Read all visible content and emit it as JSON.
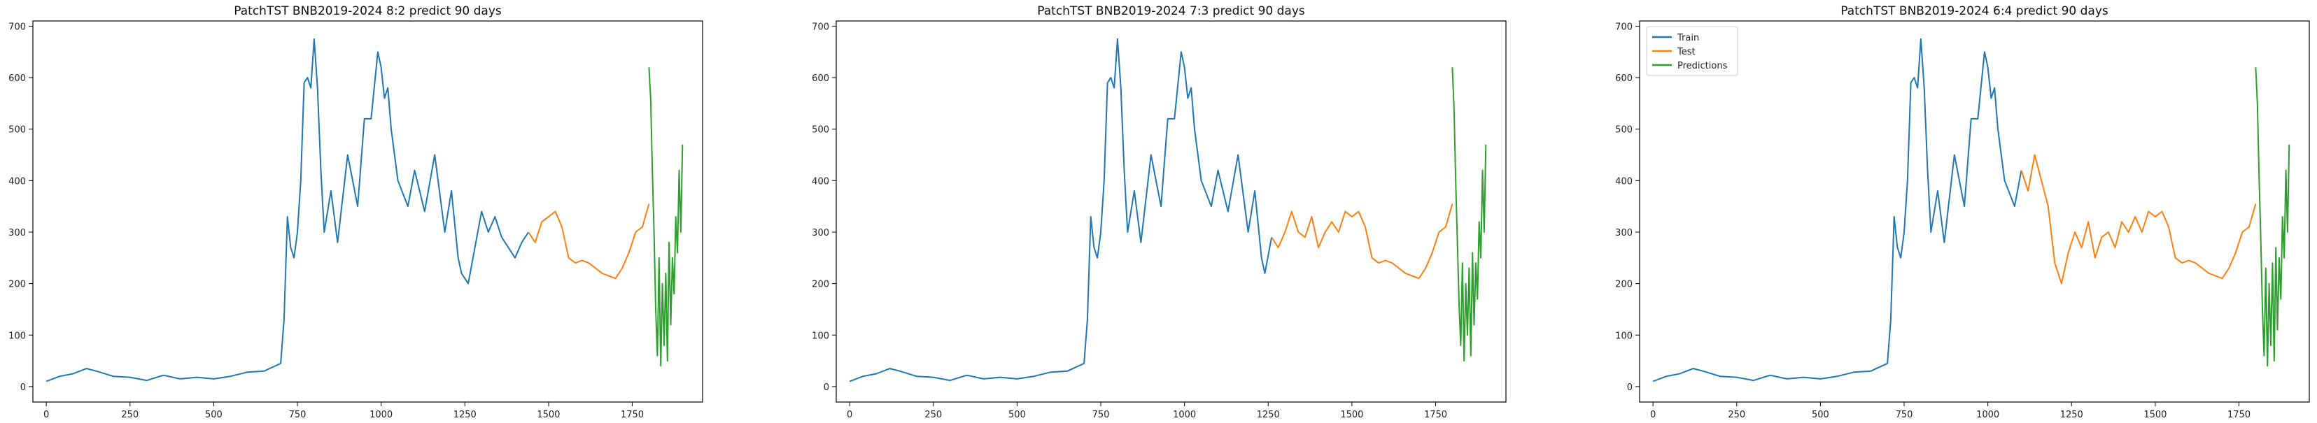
{
  "colors": {
    "train": "#1f77b4",
    "test": "#ff7f0e",
    "predictions": "#2ca02c"
  },
  "legend": {
    "placement": "top-left",
    "entries": [
      "Train",
      "Test",
      "Predictions"
    ]
  },
  "chart_data": [
    {
      "type": "line",
      "title": "PatchTST BNB2019-2024 8:2 predict 90 days",
      "xlabel": "",
      "ylabel": "",
      "xlim": [
        -40,
        1960
      ],
      "ylim": [
        -30,
        710
      ],
      "xticks": [
        0,
        250,
        500,
        750,
        1000,
        1250,
        1500,
        1750
      ],
      "yticks": [
        0,
        100,
        200,
        300,
        400,
        500,
        600,
        700
      ],
      "grid": false,
      "legend": false,
      "series": [
        {
          "name": "Train",
          "x": [
            0,
            40,
            80,
            120,
            150,
            200,
            250,
            300,
            350,
            400,
            450,
            500,
            550,
            600,
            650,
            700,
            710,
            720,
            730,
            740,
            750,
            760,
            770,
            780,
            790,
            800,
            810,
            820,
            830,
            850,
            870,
            900,
            930,
            950,
            970,
            990,
            1000,
            1010,
            1020,
            1030,
            1050,
            1080,
            1100,
            1130,
            1160,
            1190,
            1210,
            1230,
            1240,
            1260,
            1280,
            1300,
            1320,
            1340,
            1360,
            1380,
            1400,
            1420,
            1440
          ],
          "y": [
            10,
            20,
            25,
            35,
            30,
            20,
            18,
            12,
            22,
            15,
            18,
            15,
            20,
            28,
            30,
            45,
            130,
            330,
            270,
            250,
            300,
            400,
            590,
            600,
            580,
            675,
            580,
            420,
            300,
            380,
            280,
            450,
            350,
            520,
            520,
            650,
            620,
            560,
            580,
            500,
            400,
            350,
            420,
            340,
            450,
            300,
            380,
            250,
            220,
            200,
            270,
            340,
            300,
            330,
            290,
            270,
            250,
            280,
            300
          ]
        },
        {
          "name": "Test",
          "x": [
            1440,
            1460,
            1480,
            1500,
            1520,
            1540,
            1560,
            1580,
            1600,
            1620,
            1640,
            1660,
            1680,
            1700,
            1720,
            1740,
            1760,
            1780,
            1800
          ],
          "y": [
            300,
            280,
            320,
            330,
            340,
            310,
            250,
            240,
            245,
            240,
            230,
            220,
            215,
            210,
            230,
            260,
            300,
            310,
            355
          ]
        },
        {
          "name": "Predictions",
          "x": [
            1800,
            1805,
            1810,
            1815,
            1820,
            1825,
            1830,
            1835,
            1840,
            1845,
            1850,
            1855,
            1860,
            1865,
            1870,
            1875,
            1880,
            1885,
            1890,
            1895,
            1900
          ],
          "y": [
            620,
            560,
            420,
            300,
            150,
            60,
            250,
            40,
            200,
            80,
            220,
            50,
            280,
            120,
            250,
            180,
            330,
            260,
            420,
            300,
            470
          ]
        }
      ]
    },
    {
      "type": "line",
      "title": "PatchTST BNB2019-2024 7:3 predict 90 days",
      "xlabel": "",
      "ylabel": "",
      "xlim": [
        -40,
        1960
      ],
      "ylim": [
        -30,
        710
      ],
      "xticks": [
        0,
        250,
        500,
        750,
        1000,
        1250,
        1500,
        1750
      ],
      "yticks": [
        0,
        100,
        200,
        300,
        400,
        500,
        600,
        700
      ],
      "grid": false,
      "legend": false,
      "series": [
        {
          "name": "Train",
          "x": [
            0,
            40,
            80,
            120,
            150,
            200,
            250,
            300,
            350,
            400,
            450,
            500,
            550,
            600,
            650,
            700,
            710,
            720,
            730,
            740,
            750,
            760,
            770,
            780,
            790,
            800,
            810,
            820,
            830,
            850,
            870,
            900,
            930,
            950,
            970,
            990,
            1000,
            1010,
            1020,
            1030,
            1050,
            1080,
            1100,
            1130,
            1160,
            1190,
            1210,
            1230,
            1240,
            1260
          ],
          "y": [
            10,
            20,
            25,
            35,
            30,
            20,
            18,
            12,
            22,
            15,
            18,
            15,
            20,
            28,
            30,
            45,
            130,
            330,
            270,
            250,
            300,
            400,
            590,
            600,
            580,
            675,
            580,
            420,
            300,
            380,
            280,
            450,
            350,
            520,
            520,
            650,
            620,
            560,
            580,
            500,
            400,
            350,
            420,
            340,
            450,
            300,
            380,
            250,
            220,
            290
          ]
        },
        {
          "name": "Test",
          "x": [
            1260,
            1280,
            1300,
            1320,
            1340,
            1360,
            1380,
            1400,
            1420,
            1440,
            1460,
            1480,
            1500,
            1520,
            1540,
            1560,
            1580,
            1600,
            1620,
            1640,
            1660,
            1680,
            1700,
            1720,
            1740,
            1760,
            1780,
            1800
          ],
          "y": [
            290,
            270,
            300,
            340,
            300,
            290,
            330,
            270,
            300,
            320,
            300,
            340,
            330,
            340,
            310,
            250,
            240,
            245,
            240,
            230,
            220,
            215,
            210,
            230,
            260,
            300,
            310,
            355
          ]
        },
        {
          "name": "Predictions",
          "x": [
            1800,
            1805,
            1810,
            1815,
            1820,
            1825,
            1830,
            1835,
            1840,
            1845,
            1850,
            1855,
            1860,
            1865,
            1870,
            1875,
            1880,
            1885,
            1890,
            1895,
            1900
          ],
          "y": [
            620,
            540,
            400,
            280,
            160,
            80,
            240,
            50,
            200,
            100,
            230,
            60,
            260,
            120,
            240,
            170,
            320,
            250,
            420,
            300,
            470
          ]
        }
      ]
    },
    {
      "type": "line",
      "title": "PatchTST BNB2019-2024 6:4 predict 90 days",
      "xlabel": "",
      "ylabel": "",
      "xlim": [
        -40,
        1960
      ],
      "ylim": [
        -30,
        710
      ],
      "xticks": [
        0,
        250,
        500,
        750,
        1000,
        1250,
        1500,
        1750
      ],
      "yticks": [
        0,
        100,
        200,
        300,
        400,
        500,
        600,
        700
      ],
      "grid": false,
      "legend": true,
      "series": [
        {
          "name": "Train",
          "x": [
            0,
            40,
            80,
            120,
            150,
            200,
            250,
            300,
            350,
            400,
            450,
            500,
            550,
            600,
            650,
            700,
            710,
            720,
            730,
            740,
            750,
            760,
            770,
            780,
            790,
            800,
            810,
            820,
            830,
            850,
            870,
            900,
            930,
            950,
            970,
            990,
            1000,
            1010,
            1020,
            1030,
            1050,
            1080,
            1100
          ],
          "y": [
            10,
            20,
            25,
            35,
            30,
            20,
            18,
            12,
            22,
            15,
            18,
            15,
            20,
            28,
            30,
            45,
            130,
            330,
            270,
            250,
            300,
            400,
            590,
            600,
            580,
            675,
            580,
            420,
            300,
            380,
            280,
            450,
            350,
            520,
            520,
            650,
            620,
            560,
            580,
            500,
            400,
            350,
            420
          ]
        },
        {
          "name": "Test",
          "x": [
            1100,
            1120,
            1140,
            1160,
            1180,
            1200,
            1220,
            1240,
            1260,
            1280,
            1300,
            1320,
            1340,
            1360,
            1380,
            1400,
            1420,
            1440,
            1460,
            1480,
            1500,
            1520,
            1540,
            1560,
            1580,
            1600,
            1620,
            1640,
            1660,
            1680,
            1700,
            1720,
            1740,
            1760,
            1780,
            1800
          ],
          "y": [
            420,
            380,
            450,
            400,
            350,
            240,
            200,
            260,
            300,
            270,
            320,
            250,
            290,
            300,
            270,
            320,
            300,
            330,
            300,
            340,
            330,
            340,
            310,
            250,
            240,
            245,
            240,
            230,
            220,
            215,
            210,
            230,
            260,
            300,
            310,
            355
          ]
        },
        {
          "name": "Predictions",
          "x": [
            1800,
            1805,
            1810,
            1815,
            1820,
            1825,
            1830,
            1835,
            1840,
            1845,
            1850,
            1855,
            1860,
            1865,
            1870,
            1875,
            1880,
            1885,
            1890,
            1895,
            1900
          ],
          "y": [
            620,
            550,
            410,
            290,
            150,
            60,
            230,
            40,
            200,
            80,
            240,
            50,
            270,
            110,
            250,
            170,
            330,
            250,
            420,
            300,
            470
          ]
        }
      ]
    }
  ]
}
